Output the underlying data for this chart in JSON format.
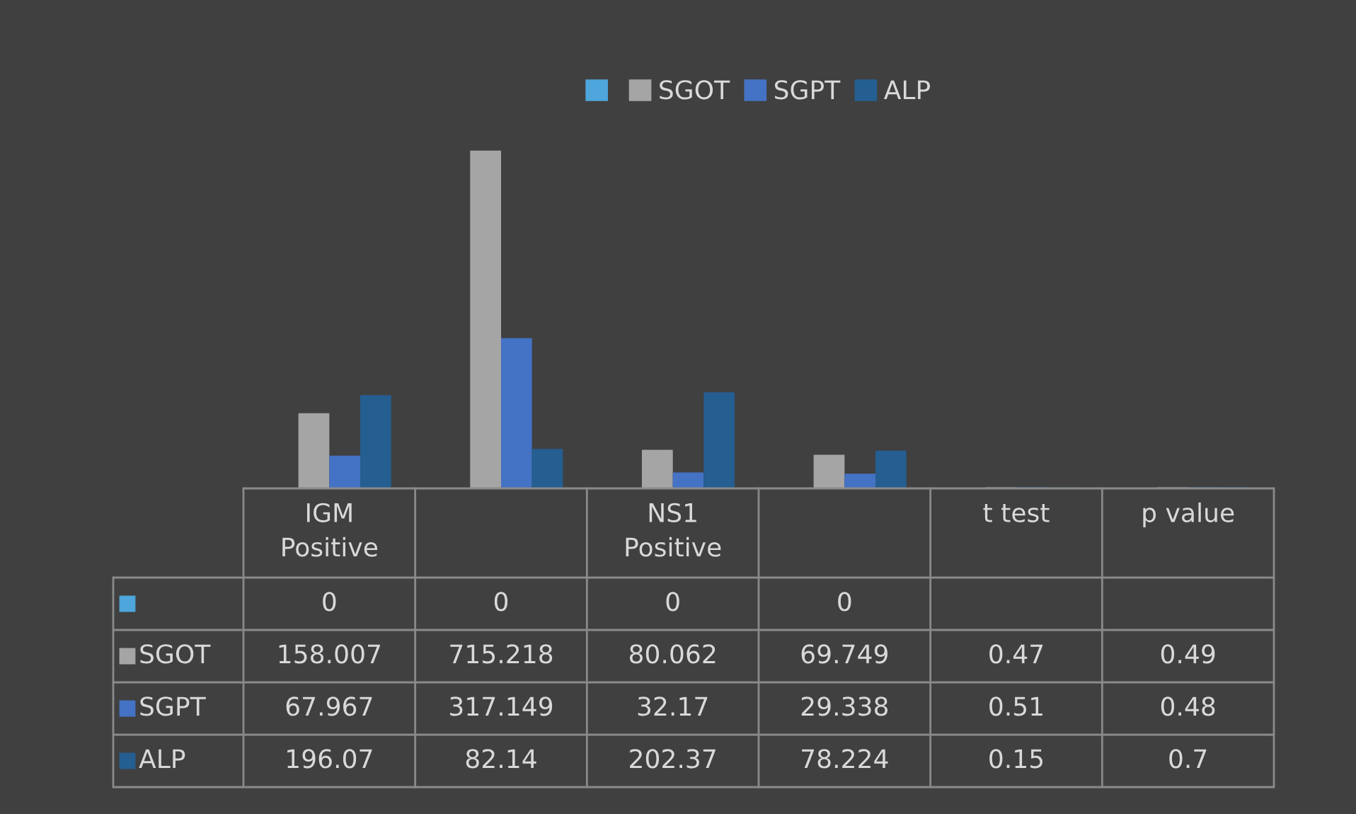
{
  "chart_data": {
    "type": "bar",
    "categories": [
      "IGM\nPositive",
      null,
      "NS1\nPositive",
      null,
      "t test",
      "p value"
    ],
    "series": [
      {
        "color": "#4ea6dc",
        "values": [
          0,
          0,
          0,
          0,
          null,
          null
        ]
      },
      {
        "name": "SGOT",
        "color": "#a5a5a5",
        "values": [
          158.007,
          715.218,
          80.062,
          69.749,
          0.47,
          0.49
        ]
      },
      {
        "name": "SGPT",
        "color": "#4472c4",
        "values": [
          67.967,
          317.149,
          32.17,
          29.338,
          0.51,
          0.48
        ]
      },
      {
        "name": "ALP",
        "color": "#255e91",
        "values": [
          196.07,
          82.14,
          202.37,
          78.224,
          0.15,
          0.7
        ]
      }
    ],
    "data_labels": true,
    "legend": "top"
  }
}
